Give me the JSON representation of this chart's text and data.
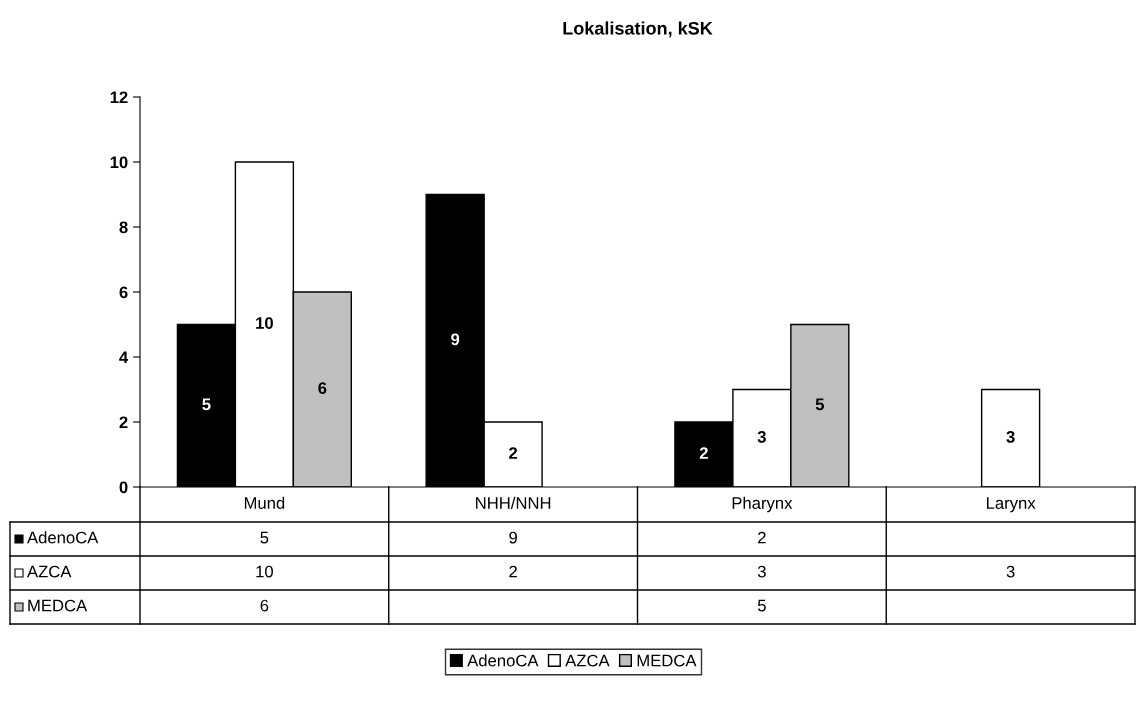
{
  "chart_data": {
    "type": "bar",
    "title": "Lokalisation, kSK",
    "categories": [
      "Mund",
      "NHH/NNH",
      "Pharynx",
      "Larynx"
    ],
    "series": [
      {
        "name": "AdenoCA",
        "color": "#000000",
        "values": [
          5,
          9,
          2,
          null
        ],
        "value_labels": [
          "5",
          "9",
          "2",
          null
        ]
      },
      {
        "name": "AZCA",
        "color": "#ffffff",
        "values": [
          10,
          2,
          3,
          3
        ],
        "value_labels": [
          "10",
          "2",
          "3",
          "3"
        ]
      },
      {
        "name": "MEDCA",
        "color": "#c0c0c0",
        "values": [
          6,
          null,
          5,
          null
        ],
        "value_labels": [
          "6",
          null,
          "5",
          null
        ]
      }
    ],
    "ylim": [
      0,
      12
    ],
    "yticks": [
      0,
      2,
      4,
      6,
      8,
      10,
      12
    ],
    "annotations": [
      "5",
      "9",
      "2",
      "10",
      "2",
      "3",
      "3",
      "6",
      "5"
    ],
    "grid": false,
    "legend": "bottom"
  }
}
